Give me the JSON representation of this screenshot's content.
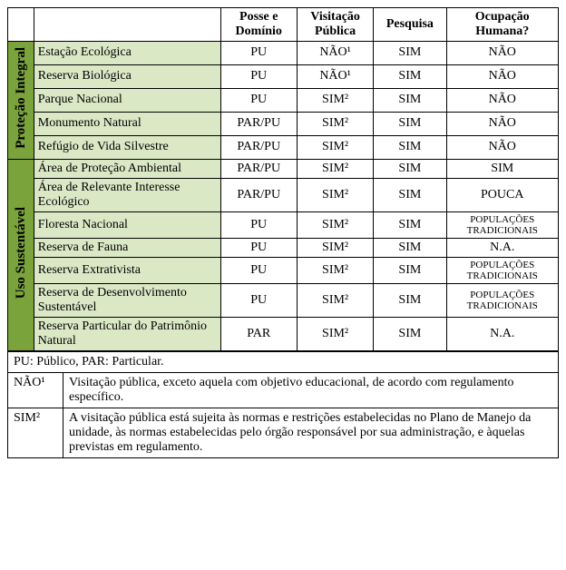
{
  "headers": {
    "blank1": "",
    "blank2": "",
    "posse": "Posse e Domínio",
    "visita": "Visitação Pública",
    "pesquisa": "Pesquisa",
    "ocup": "Ocupação Humana?"
  },
  "groups": [
    {
      "label": "Proteção Integral",
      "rows": [
        {
          "cat": "Estação Ecológica",
          "posse": "PU",
          "visita": "NÃO¹",
          "pesq": "SIM",
          "ocup": "NÃO",
          "small": false
        },
        {
          "cat": "Reserva Biológica",
          "posse": "PU",
          "visita": "NÃO¹",
          "pesq": "SIM",
          "ocup": "NÃO",
          "small": false
        },
        {
          "cat": "Parque Nacional",
          "posse": "PU",
          "visita": "SIM²",
          "pesq": "SIM",
          "ocup": "NÃO",
          "small": false
        },
        {
          "cat": "Monumento Natural",
          "posse": "PAR/PU",
          "visita": "SIM²",
          "pesq": "SIM",
          "ocup": "NÃO",
          "small": false
        },
        {
          "cat": "Refúgio de Vida Silvestre",
          "posse": "PAR/PU",
          "visita": "SIM²",
          "pesq": "SIM",
          "ocup": "NÃO",
          "small": false
        }
      ]
    },
    {
      "label": "Uso Sustentável",
      "rows": [
        {
          "cat": "Área de Proteção Ambiental",
          "posse": "PAR/PU",
          "visita": "SIM²",
          "pesq": "SIM",
          "ocup": "SIM",
          "small": false
        },
        {
          "cat": "Área de Relevante Interesse Ecológico",
          "posse": "PAR/PU",
          "visita": "SIM²",
          "pesq": "SIM",
          "ocup": "POUCA",
          "small": false
        },
        {
          "cat": "Floresta Nacional",
          "posse": "PU",
          "visita": "SIM²",
          "pesq": "SIM",
          "ocup": "POPULAÇÕES TRADICIONAIS",
          "small": true
        },
        {
          "cat": "Reserva de Fauna",
          "posse": "PU",
          "visita": "SIM²",
          "pesq": "SIM",
          "ocup": "N.A.",
          "small": false
        },
        {
          "cat": "Reserva Extrativista",
          "posse": "PU",
          "visita": "SIM²",
          "pesq": "SIM",
          "ocup": "POPULAÇÕES TRADICIONAIS",
          "small": true
        },
        {
          "cat": "Reserva de Desenvolvimento Sustentável",
          "posse": "PU",
          "visita": "SIM²",
          "pesq": "SIM",
          "ocup": "POPULAÇÕES TRADICIONAIS",
          "small": true
        },
        {
          "cat": "Reserva Particular do Patrimônio Natural",
          "posse": "PAR",
          "visita": "SIM²",
          "pesq": "SIM",
          "ocup": "N.A.",
          "small": false
        }
      ]
    }
  ],
  "notes": {
    "legend": "PU: Público, PAR: Particular.",
    "nao_label": "NÃO¹",
    "nao_text": "Visitação pública, exceto aquela com objetivo educacional, de acordo com regulamento específico.",
    "sim_label": "SIM²",
    "sim_text": "A visitação pública está sujeita às normas e restrições estabelecidas no Plano de Manejo da unidade, às normas estabelecidas pelo órgão responsável por sua administração, e àquelas previstas em regulamento."
  },
  "style": {
    "group_bg": "#7aa33c",
    "cat_bg": "#dbe8c6",
    "border": "#000000"
  }
}
